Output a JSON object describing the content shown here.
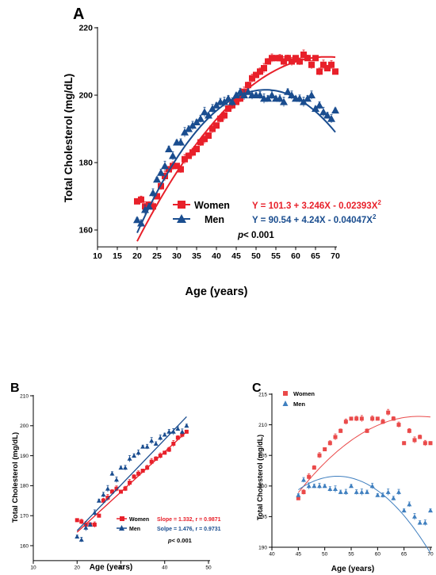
{
  "colors": {
    "women": "#e8202a",
    "men": "#1a4d8f",
    "womenLight": "#ea4a4a",
    "menLight": "#3f7fbf"
  },
  "chart_data": [
    {
      "panel": "A",
      "type": "scatter",
      "xlabel": "Age (years)",
      "ylabel": "Total Cholesterol (mg/dL)",
      "xlim": [
        10,
        70
      ],
      "ylim": [
        155,
        220
      ],
      "xticks": [
        10,
        15,
        20,
        25,
        30,
        35,
        40,
        45,
        50,
        55,
        60,
        65,
        70
      ],
      "yticks": [
        160,
        180,
        200,
        220
      ],
      "series": [
        {
          "name": "Women",
          "equation": "Y = 101.3 + 3.246X - 0.02393X",
          "eqSup": "2",
          "fit": [
            101.3,
            3.246,
            -0.02393
          ],
          "fitRange": [
            20,
            70
          ],
          "x": [
            20,
            21,
            22,
            23,
            24,
            25,
            26,
            27,
            28,
            29,
            30,
            31,
            32,
            33,
            34,
            35,
            36,
            37,
            38,
            39,
            40,
            41,
            42,
            43,
            44,
            45,
            46,
            47,
            48,
            49,
            50,
            51,
            52,
            53,
            54,
            55,
            56,
            57,
            58,
            59,
            60,
            61,
            62,
            63,
            64,
            65,
            66,
            67,
            68,
            69,
            70
          ],
          "y": [
            168.5,
            169,
            167,
            167.5,
            167,
            170,
            173,
            176,
            178,
            179,
            179,
            178,
            181,
            182,
            183,
            184,
            186,
            187,
            188,
            190,
            191,
            193,
            194,
            196,
            197,
            198,
            199,
            201,
            203,
            205,
            206,
            207,
            208,
            210,
            211,
            211,
            211,
            210,
            211,
            210,
            211,
            210,
            212,
            211,
            209,
            211,
            207,
            209,
            208,
            209,
            207
          ]
        },
        {
          "name": "Men",
          "equation": "Y = 90.54 + 4.24X - 0.04047X",
          "eqSup": "2",
          "fit": [
            90.54,
            4.24,
            -0.04047
          ],
          "fitRange": [
            20,
            70
          ],
          "x": [
            20,
            21,
            22,
            23,
            24,
            25,
            26,
            27,
            28,
            29,
            30,
            31,
            32,
            33,
            34,
            35,
            36,
            37,
            38,
            39,
            40,
            41,
            42,
            43,
            44,
            45,
            46,
            47,
            48,
            49,
            50,
            51,
            52,
            53,
            54,
            55,
            56,
            57,
            58,
            59,
            60,
            61,
            62,
            63,
            64,
            65,
            66,
            67,
            68,
            69,
            70
          ],
          "y": [
            163,
            162,
            166,
            167,
            171,
            175,
            177,
            179,
            184,
            182,
            186,
            186,
            189,
            190,
            191,
            192,
            193,
            195,
            194,
            196,
            197,
            198,
            198,
            199,
            198,
            200,
            201,
            200,
            201,
            200,
            200,
            200,
            199,
            199,
            200,
            199,
            199,
            198,
            201,
            200,
            199,
            199,
            198,
            199,
            200,
            196,
            197,
            195,
            194,
            193,
            195.5
          ]
        }
      ],
      "annotation": "p",
      "annotationRest": "< 0.001"
    },
    {
      "panel": "B",
      "type": "scatter",
      "xlabel": "Age (years)",
      "ylabel": "Total Cholesterol (mg/dL)",
      "xlim": [
        10,
        50
      ],
      "ylim": [
        155,
        210
      ],
      "xticks": [
        10,
        20,
        30,
        40,
        50
      ],
      "yticks": [
        160,
        170,
        180,
        190,
        200,
        210
      ],
      "series": [
        {
          "name": "Women",
          "stat": "Slope = 1.332, r = 0.9871",
          "x": [
            20,
            21,
            22,
            23,
            24,
            25,
            26,
            27,
            28,
            29,
            30,
            31,
            32,
            33,
            34,
            35,
            36,
            37,
            38,
            39,
            40,
            41,
            42,
            43,
            44,
            45
          ],
          "y": [
            168.5,
            168,
            167,
            167,
            167,
            170,
            175,
            176,
            178,
            179,
            178,
            179,
            181,
            183,
            184,
            185,
            186,
            188,
            189,
            190,
            191,
            192,
            194,
            196,
            197,
            198
          ],
          "line": [
            [
              20,
              164.5
            ],
            [
              45,
              198
            ]
          ]
        },
        {
          "name": "Men",
          "stat": "Solpe = 1.476, r = 0.9731",
          "x": [
            20,
            21,
            22,
            23,
            24,
            25,
            26,
            27,
            28,
            29,
            30,
            31,
            32,
            33,
            34,
            35,
            36,
            37,
            38,
            39,
            40,
            41,
            42,
            43,
            44,
            45
          ],
          "y": [
            163,
            162,
            166,
            167,
            171,
            175,
            177,
            179,
            184,
            182,
            186,
            186,
            189,
            190,
            191,
            193,
            193,
            195,
            194,
            196,
            197,
            198,
            198,
            199,
            198,
            200
          ],
          "line": [
            [
              20,
              165
            ],
            [
              45,
              203
            ]
          ]
        }
      ],
      "annotation": "p",
      "annotationRest": "< 0.001"
    },
    {
      "panel": "C",
      "type": "scatter",
      "xlabel": "Age (years)",
      "ylabel": "Total Cholesterol (mg/dL)",
      "xlim": [
        40,
        70
      ],
      "ylim": [
        190,
        215
      ],
      "xticks": [
        40,
        45,
        50,
        55,
        60,
        65,
        70
      ],
      "yticks": [
        190,
        195,
        200,
        205,
        210,
        215
      ],
      "series": [
        {
          "name": "Women",
          "fit": [
            101.3,
            3.246,
            -0.02393
          ],
          "fitRange": [
            45,
            70
          ],
          "x": [
            45,
            46,
            47,
            48,
            49,
            50,
            51,
            52,
            53,
            54,
            55,
            56,
            57,
            58,
            59,
            60,
            61,
            62,
            63,
            64,
            65,
            66,
            67,
            68,
            69,
            70
          ],
          "y": [
            198,
            199,
            201.5,
            203,
            205,
            206,
            207,
            208,
            209,
            210.5,
            211,
            211,
            211,
            209,
            211,
            211,
            210.5,
            212,
            211,
            210,
            207,
            209,
            207.5,
            208,
            207,
            207
          ]
        },
        {
          "name": "Men",
          "fit": [
            90.54,
            4.24,
            -0.04047
          ],
          "fitRange": [
            45,
            70
          ],
          "x": [
            45,
            46,
            47,
            48,
            49,
            50,
            51,
            52,
            53,
            54,
            55,
            56,
            57,
            58,
            59,
            60,
            61,
            62,
            63,
            64,
            65,
            66,
            67,
            68,
            69,
            70
          ],
          "y": [
            198.5,
            201,
            200,
            200,
            200,
            200,
            199.5,
            199.5,
            199,
            199,
            200,
            199,
            199,
            199,
            200,
            198.5,
            198.5,
            199,
            198,
            199,
            196,
            197,
            195,
            194,
            194,
            196
          ]
        }
      ]
    }
  ]
}
